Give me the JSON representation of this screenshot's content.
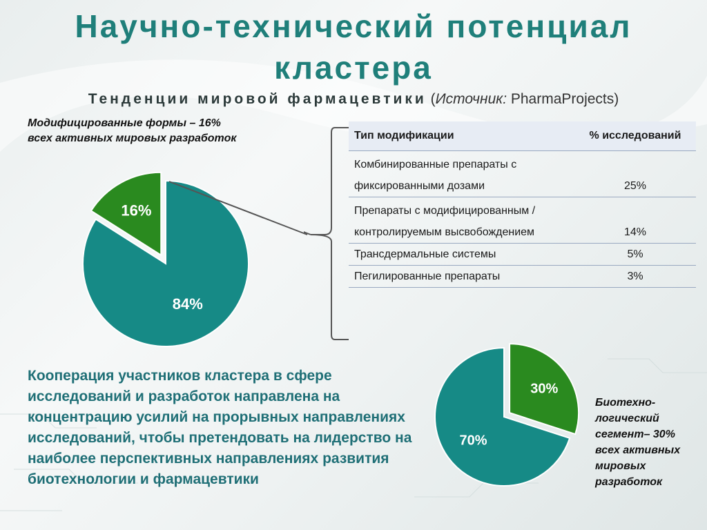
{
  "title": "Научно-технический потенциал кластера",
  "subtitle": {
    "spaced": "Тенденции мировой фармацевтики",
    "paren_open": "(",
    "source_label": "Источник:",
    "source_name": "PharmaProjects)"
  },
  "pie1_caption": "Модифицированные формы – 16% всех активных мировых разработок",
  "pie2_caption": "Биотехно-логический сегмент– 30% всех активных мировых разработок",
  "table": {
    "headers": [
      "Тип модификации",
      "% исследований"
    ],
    "rows": [
      {
        "type": "Комбинированные препараты с фиксированными дозами",
        "pct": "25%"
      },
      {
        "type": "Препараты с модифицированным / контролируемым высвобождением",
        "pct": "14%"
      },
      {
        "type": "Трансдермальные системы",
        "pct": "5%"
      },
      {
        "type": "Пегилированные препараты",
        "pct": "3%"
      }
    ]
  },
  "cooperation_text": "Кооперация участников кластера в сфере исследований и разработок направлена на концентрацию усилий на прорывных направлениях исследований, чтобы претендовать на лидерство на наиболее перспективных направлениях развития биотехнологии и фармацевтики",
  "colors": {
    "teal": "#168a86",
    "green": "#2a8a1f",
    "title": "#1f7f7a"
  },
  "chart_data": [
    {
      "type": "pie",
      "slices": [
        {
          "label": "16%",
          "value": 16,
          "color": "#2a8a1f",
          "exploded": true
        },
        {
          "label": "84%",
          "value": 84,
          "color": "#168a86",
          "exploded": false
        }
      ]
    },
    {
      "type": "pie",
      "slices": [
        {
          "label": "30%",
          "value": 30,
          "color": "#2a8a1f",
          "exploded": true
        },
        {
          "label": "70%",
          "value": 70,
          "color": "#168a86",
          "exploded": false
        }
      ]
    },
    {
      "type": "table",
      "columns": [
        "Тип модификации",
        "% исследований"
      ],
      "rows": [
        [
          "Комбинированные препараты с фиксированными дозами",
          25
        ],
        [
          "Препараты с модифицированным / контролируемым высвобождением",
          14
        ],
        [
          "Трансдермальные системы",
          5
        ],
        [
          "Пегилированные препараты",
          3
        ]
      ]
    }
  ]
}
